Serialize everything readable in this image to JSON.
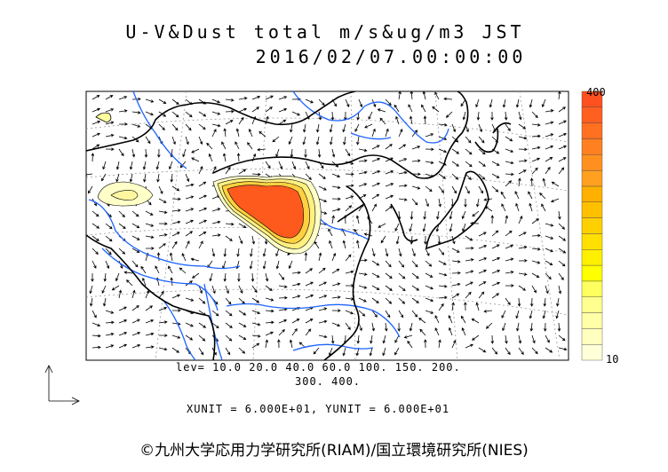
{
  "title_line1": "U-V&Dust total m/s&ug/m3 JST",
  "title_line2": "2016/02/07.00:00:00",
  "colorbar": {
    "max_label": "400",
    "min_label": "10",
    "colors": [
      "#ffffd8",
      "#ffffc0",
      "#ffffa8",
      "#ffff90",
      "#ffff60",
      "#ffff00",
      "#fff000",
      "#ffe000",
      "#ffd000",
      "#ffc000",
      "#ffb000",
      "#ffa020",
      "#ff9020",
      "#ff8020",
      "#ff7020",
      "#ff6020",
      "#ff5020"
    ]
  },
  "levels_line1": "lev= 10.0 20.0 40.0 60.0 100. 150. 200.",
  "levels_line2": "300. 400.",
  "units_line": "XUNIT = 6.000E+01, YUNIT = 6.000E+01",
  "copyright": "©九州大学応用力学研究所(RIAM)/国立環境研究所(NIES)",
  "colors": {
    "river": "#1e64ff",
    "coast": "#000000",
    "dust_core": "#ff5a1e"
  }
}
